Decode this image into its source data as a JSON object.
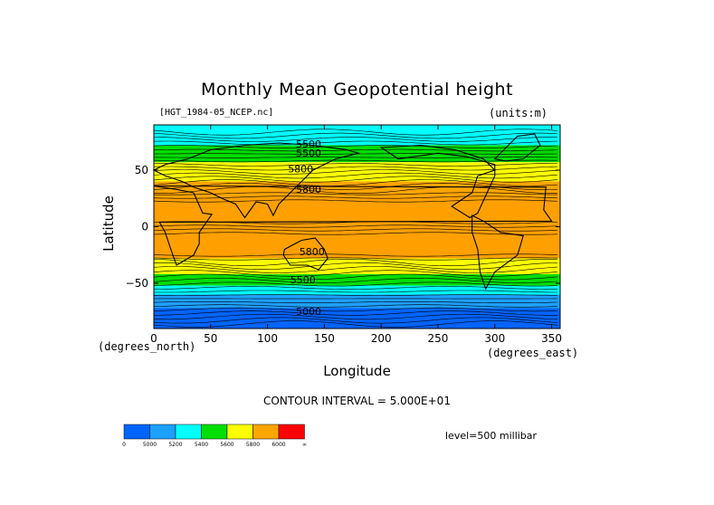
{
  "chart_data": {
    "type": "heatmap",
    "title": "Monthly Mean Geopotential height",
    "file_label": "[HGT_1984-05_NCEP.nc]",
    "units_label": "(units:m)",
    "xlabel": "Longitude",
    "ylabel": "Latitude",
    "x_units_label": "(degrees_east)",
    "y_units_label": "(degrees_north)",
    "xlim": [
      0,
      357.5
    ],
    "ylim": [
      -90,
      90
    ],
    "x_ticks": [
      0,
      50,
      100,
      150,
      200,
      250,
      300,
      350
    ],
    "y_ticks": [
      -50,
      0,
      50
    ],
    "y_tick_labels": [
      "−50",
      "0",
      "50"
    ],
    "contour_note": "CONTOUR INTERVAL = 5.000E+01",
    "level_note": "level=500 millibar",
    "contour_interval": 50,
    "contour_labels": [
      {
        "text": "5500",
        "lon": 125,
        "lat": 70
      },
      {
        "text": "5500",
        "lon": 125,
        "lat": 62
      },
      {
        "text": "5800",
        "lon": 118,
        "lat": 48
      },
      {
        "text": "5800",
        "lon": 125,
        "lat": 30
      },
      {
        "text": "5800",
        "lon": 128,
        "lat": -25
      },
      {
        "text": "5500",
        "lon": 120,
        "lat": -50
      },
      {
        "text": "5000",
        "lon": 125,
        "lat": -78
      }
    ],
    "zonal_bands": [
      {
        "lat_from": 90,
        "lat_to": 72,
        "color": "#00ffff"
      },
      {
        "lat_from": 72,
        "lat_to": 57,
        "color": "#00dd00"
      },
      {
        "lat_from": 57,
        "lat_to": 40,
        "color": "#ffff00"
      },
      {
        "lat_from": 40,
        "lat_to": 26,
        "color": "#ffa500"
      },
      {
        "lat_from": 26,
        "lat_to": -28,
        "color": "#ffa000"
      },
      {
        "lat_from": -28,
        "lat_to": -42,
        "color": "#ffff00"
      },
      {
        "lat_from": -42,
        "lat_to": -52,
        "color": "#00dd00"
      },
      {
        "lat_from": -52,
        "lat_to": -60,
        "color": "#00ffff"
      },
      {
        "lat_from": -60,
        "lat_to": -72,
        "color": "#1ea0ff"
      },
      {
        "lat_from": -72,
        "lat_to": -90,
        "color": "#0064ff"
      }
    ],
    "colorbar": {
      "colors": [
        "#0064ff",
        "#1ea0ff",
        "#00ffff",
        "#00dd00",
        "#ffff00",
        "#ffa500",
        "#ff0000"
      ],
      "tick_labels": [
        "0",
        "5000",
        "5200",
        "5400",
        "5600",
        "5800",
        "6000",
        "∞"
      ]
    }
  }
}
